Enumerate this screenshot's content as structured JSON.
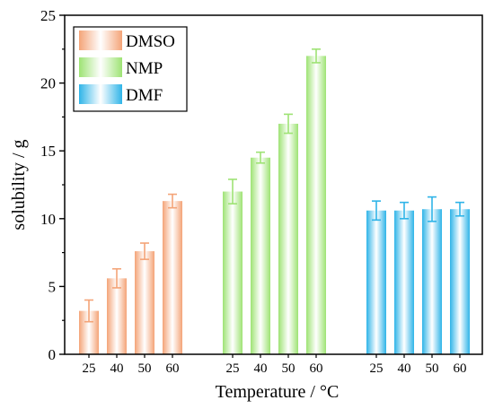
{
  "chart_data": {
    "type": "bar",
    "xlabel": "Temperature / °C",
    "ylabel": "solubility / g",
    "ylim": [
      0,
      25
    ],
    "yticks": [
      0,
      5,
      10,
      15,
      20,
      25
    ],
    "grid": false,
    "legend_position": "top-left",
    "series": [
      {
        "name": "DMSO",
        "color": "#f4a478",
        "categories": [
          "25",
          "40",
          "50",
          "60"
        ],
        "values": [
          3.2,
          5.6,
          7.6,
          11.3
        ],
        "errors": [
          0.8,
          0.7,
          0.6,
          0.5
        ]
      },
      {
        "name": "NMP",
        "color": "#9ee374",
        "categories": [
          "25",
          "40",
          "50",
          "60"
        ],
        "values": [
          12.0,
          14.5,
          17.0,
          22.0
        ],
        "errors": [
          0.9,
          0.4,
          0.7,
          0.5
        ]
      },
      {
        "name": "DMF",
        "color": "#2fb4e8",
        "categories": [
          "25",
          "40",
          "50",
          "60"
        ],
        "values": [
          10.6,
          10.6,
          10.7,
          10.7
        ],
        "errors": [
          0.7,
          0.6,
          0.9,
          0.5
        ]
      }
    ]
  }
}
